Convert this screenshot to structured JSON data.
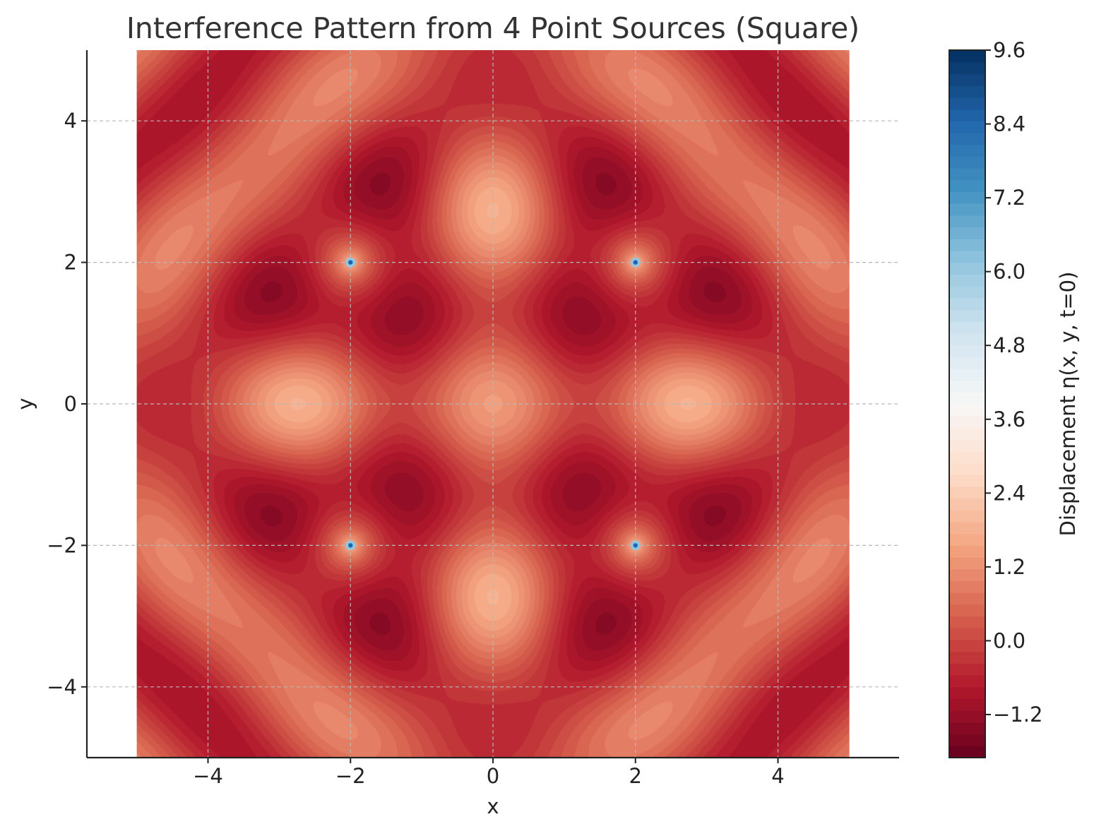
{
  "chart_data": {
    "type": "heatmap",
    "subtype": "filled-contour",
    "title": "Interference Pattern from 4 Point Sources (Square)",
    "xlabel": "x",
    "ylabel": "y",
    "xlim": [
      -5.7,
      5.7
    ],
    "ylim": [
      -5,
      5
    ],
    "data_extent": {
      "x": [
        -5,
        5
      ],
      "y": [
        -5,
        5
      ]
    },
    "x_ticks": [
      -4,
      -2,
      0,
      2,
      4
    ],
    "y_ticks": [
      -4,
      -2,
      0,
      2,
      4
    ],
    "x_tick_labels": [
      "−4",
      "−2",
      "0",
      "2",
      "4"
    ],
    "y_tick_labels": [
      "−4",
      "−2",
      "0",
      "2",
      "4"
    ],
    "grid": true,
    "colormap": "RdBu",
    "sources": [
      {
        "x": -2,
        "y": 2
      },
      {
        "x": 2,
        "y": 2
      },
      {
        "x": -2,
        "y": -2
      },
      {
        "x": 2,
        "y": -2
      }
    ],
    "colorbar": {
      "label": "Displacement η(x, y, t=0)",
      "range": [
        -1.9,
        9.6
      ],
      "ticks": [
        -1.2,
        0.0,
        1.2,
        2.4,
        3.6,
        4.8,
        6.0,
        7.2,
        8.4,
        9.6
      ],
      "tick_labels": [
        "−1.2",
        "0.0",
        "1.2",
        "2.4",
        "3.6",
        "4.8",
        "6.0",
        "7.2",
        "8.4",
        "9.6"
      ]
    }
  }
}
